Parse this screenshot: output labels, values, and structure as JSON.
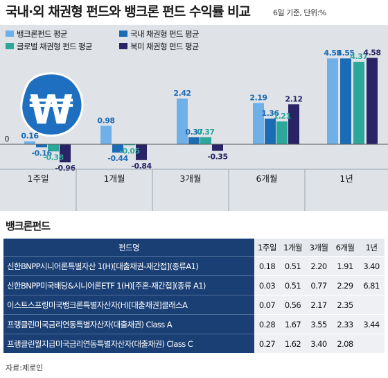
{
  "title": "국내·외 채권형 펀드와 뱅크론 펀드 수익률 비교",
  "basis": "6일 기준, 단위:%",
  "colors": {
    "panel_bg": "#dfe3e8",
    "table_header": "#1a3f75"
  },
  "icon": "won-currency-icon",
  "chart_data": {
    "type": "bar",
    "categories": [
      "1주일",
      "1개월",
      "3개월",
      "6개월",
      "1년"
    ],
    "unit": "%",
    "series": [
      {
        "name": "뱅크론펀드 평균",
        "color": "#6fb0e8",
        "values": [
          0.16,
          0.98,
          2.42,
          2.19,
          4.55
        ],
        "labels": [
          "0.16",
          "0.98",
          "2.42",
          "2.19",
          "4.55"
        ]
      },
      {
        "name": "국내 채권형 펀드 평균",
        "color": "#1c6bb5",
        "values": [
          -0.16,
          -0.44,
          0.37,
          1.36,
          4.55
        ],
        "labels": [
          "-0.16",
          "-0.44",
          "0.37",
          "1.36",
          "4.55"
        ]
      },
      {
        "name": "글로벌 채권형 펀드 평균",
        "color": "#2ba89a",
        "values": [
          -0.38,
          -0.05,
          0.37,
          1.21,
          4.37
        ],
        "labels": [
          "-0.38",
          "-0.05",
          "0.37",
          "1.21",
          "4.37"
        ]
      },
      {
        "name": "북미 채권형 펀드 평균",
        "color": "#2a2466",
        "values": [
          -0.96,
          -0.84,
          -0.35,
          2.12,
          4.58
        ],
        "labels": [
          "-0.96",
          "-0.84",
          "-0.35",
          "2.12",
          "4.58"
        ]
      }
    ],
    "zero_label": "0",
    "ylim": [
      -1.1,
      4.8
    ],
    "legend_position": "top-left"
  },
  "fund_table": {
    "heading": "뱅크론펀드",
    "columns": [
      "펀드명",
      "1주일",
      "1개월",
      "3개월",
      "6개월",
      "1년"
    ],
    "rows": [
      {
        "name": "신한BNPP시니어론특별자산 1(H)[대출채권-재간접](종류A1)",
        "values": [
          "0.18",
          "0.51",
          "2.20",
          "1.91",
          "3.40"
        ]
      },
      {
        "name": "신한BNPP미국배당&시니어론ETF 1(H)[주혼-재간접](종류 A1)",
        "values": [
          "0.03",
          "0.51",
          "0.77",
          "2.29",
          "6.81"
        ]
      },
      {
        "name": "이스트스프링미국뱅크론특별자산자(H)[대출채권]클래스A",
        "values": [
          "0.07",
          "0.56",
          "2.17",
          "2.35",
          ""
        ]
      },
      {
        "name": "프랭클린미국금리연동특별자산자(대출채권) Class A",
        "values": [
          "0.28",
          "1.67",
          "3.55",
          "2.33",
          "3.44"
        ]
      },
      {
        "name": "프랭클린월지급미국금리연동특별자산자(대출채권) Class C",
        "values": [
          "0.27",
          "1.62",
          "3.40",
          "2.08",
          ""
        ]
      }
    ]
  },
  "source": "자료:제로인"
}
